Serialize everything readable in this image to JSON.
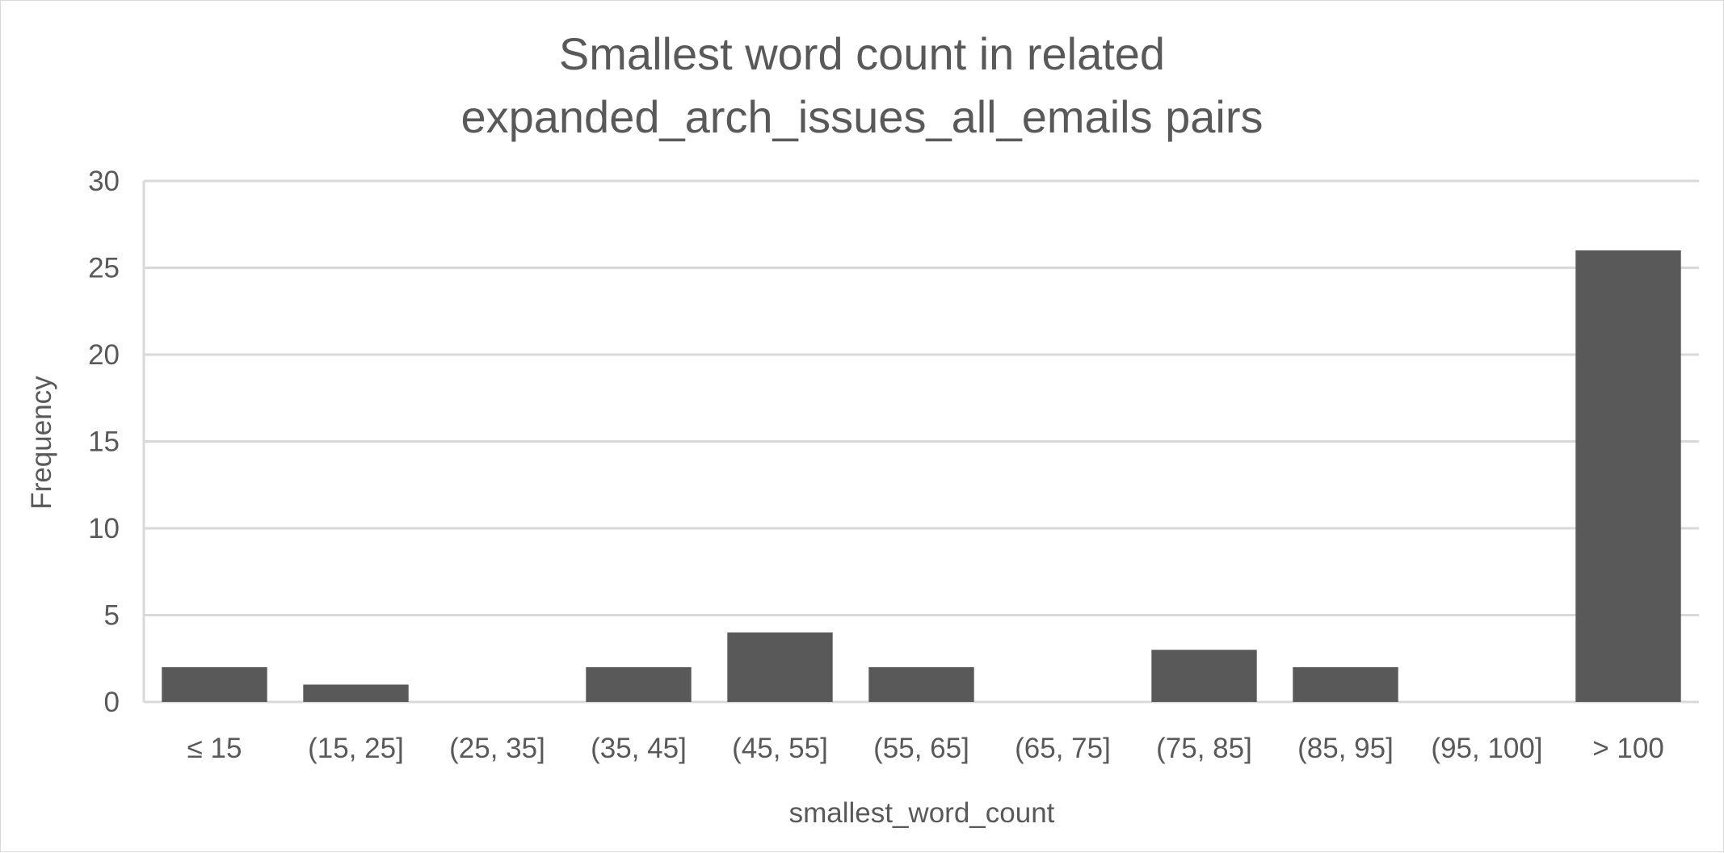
{
  "chart_data": {
    "type": "bar",
    "title_lines": [
      "Smallest word count in related",
      "expanded_arch_issues_all_emails pairs"
    ],
    "xlabel": "smallest_word_count",
    "ylabel": "Frequency",
    "categories": [
      "≤ 15",
      "(15, 25]",
      "(25, 35]",
      "(35, 45]",
      "(45, 55]",
      "(55, 65]",
      "(65, 75]",
      "(75, 85]",
      "(85, 95]",
      "(95, 100]",
      "> 100"
    ],
    "values": [
      2,
      1,
      0,
      2,
      4,
      2,
      0,
      3,
      2,
      0,
      26
    ],
    "ylim": [
      0,
      30
    ],
    "yticks": [
      0,
      5,
      10,
      15,
      20,
      25,
      30
    ],
    "grid": true,
    "legend": "none",
    "colors": {
      "bar": "#595959",
      "grid": "#d9d9d9",
      "text": "#595959"
    }
  }
}
